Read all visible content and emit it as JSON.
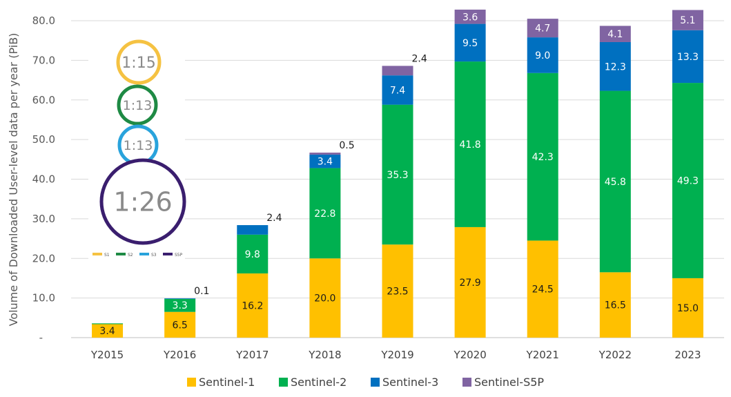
{
  "chart_data": {
    "type": "bar",
    "stacked": true,
    "title": "",
    "xlabel": "",
    "ylabel": "Volume of Downloaded User-level data per year (PiB)",
    "ylim": [
      0,
      80
    ],
    "y_ticks": [
      "-",
      "10.0",
      "20.0",
      "30.0",
      "40.0",
      "50.0",
      "60.0",
      "70.0",
      "80.0"
    ],
    "grid": true,
    "legend_position": "bottom",
    "categories": [
      "Y2015",
      "Y2016",
      "Y2017",
      "Y2018",
      "Y2019",
      "Y2020",
      "Y2021",
      "Y2022",
      "2023"
    ],
    "series": [
      {
        "name": "Sentinel-1",
        "color": "#FFC000",
        "values": [
          3.4,
          6.5,
          16.2,
          20.0,
          23.5,
          27.9,
          24.5,
          16.5,
          15.0
        ],
        "labels": [
          "3.4",
          "6.5",
          "16.2",
          "20.0",
          "23.5",
          "27.9",
          "24.5",
          "16.5",
          "15.0"
        ]
      },
      {
        "name": "Sentinel-2",
        "color": "#00B050",
        "values": [
          0.2,
          3.3,
          9.8,
          22.8,
          35.3,
          41.8,
          42.3,
          45.8,
          49.3
        ],
        "labels": [
          "",
          "3.3",
          "9.8",
          "22.8",
          "35.3",
          "41.8",
          "42.3",
          "45.8",
          "49.3"
        ]
      },
      {
        "name": "Sentinel-3",
        "color": "#0070C0",
        "values": [
          0,
          0.1,
          2.4,
          3.4,
          7.4,
          9.5,
          9.0,
          12.3,
          13.3
        ],
        "labels": [
          "",
          "0.1",
          "2.4",
          "3.4",
          "7.4",
          "9.5",
          "9.0",
          "12.3",
          "13.3"
        ]
      },
      {
        "name": "Sentinel-S5P",
        "color": "#8064A2",
        "values": [
          0,
          0,
          0,
          0.5,
          2.4,
          3.6,
          4.7,
          4.1,
          5.1
        ],
        "labels": [
          "",
          "",
          "",
          "0.5",
          "2.4",
          "3.6",
          "4.7",
          "4.1",
          "5.1"
        ]
      }
    ],
    "inset": {
      "ratios": [
        {
          "text": "1:15",
          "color": "#F5C242"
        },
        {
          "text": "1:13",
          "color": "#1E8A44"
        },
        {
          "text": "1:13",
          "color": "#29A3DC"
        },
        {
          "text": "1:26",
          "color": "#3A1E6E"
        }
      ],
      "legend": [
        {
          "label": "S1",
          "color": "#F5C242"
        },
        {
          "label": "S2",
          "color": "#1E8A44"
        },
        {
          "label": "S3",
          "color": "#29A3DC"
        },
        {
          "label": "S5P",
          "color": "#3A1E6E"
        }
      ]
    }
  }
}
